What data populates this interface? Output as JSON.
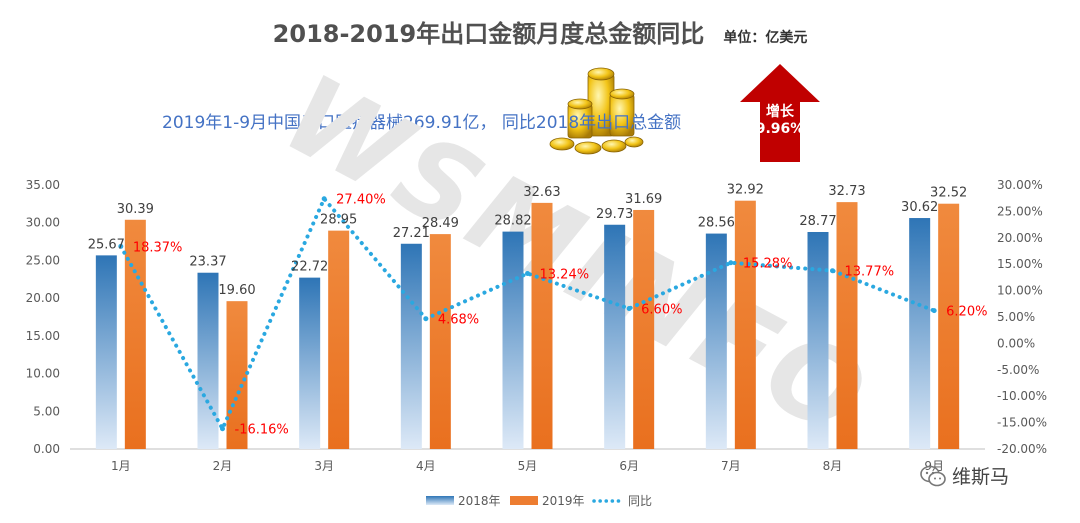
{
  "header": {
    "title": "2018-2019年出口金额月度总金额同比",
    "unit": "单位：亿美元",
    "subtitle": "2019年1-9月中国出口医疗器械269.91亿， 同比2018年出口总金额",
    "growth_label": "增长",
    "growth_value": "9.96%"
  },
  "watermark": "WSMINFO",
  "logo": {
    "text": "维斯马",
    "icon": "wechat-icon"
  },
  "colors": {
    "series_2018": "#2e75b6",
    "series_2019": "#ed7d31",
    "yoy_line": "#2aa8e0",
    "yoy_label": "#ff0000",
    "arrow": "#c00000"
  },
  "chart_data": {
    "type": "bar",
    "categories": [
      "1月",
      "2月",
      "3月",
      "4月",
      "5月",
      "6月",
      "7月",
      "8月",
      "9月"
    ],
    "series": [
      {
        "name": "2018年",
        "type": "bar",
        "axis": "left",
        "values": [
          25.67,
          23.37,
          22.72,
          27.21,
          28.82,
          29.73,
          28.56,
          28.77,
          30.62
        ],
        "labels": [
          "25.67",
          "23.37",
          "22.72",
          "27.21",
          "28.82",
          "29.73",
          "28.56",
          "28.77",
          "30.62"
        ]
      },
      {
        "name": "2019年",
        "type": "bar",
        "axis": "left",
        "values": [
          30.39,
          19.6,
          28.95,
          28.49,
          32.63,
          31.69,
          32.92,
          32.73,
          32.52
        ],
        "labels": [
          "30.39",
          "19.60",
          "28.95",
          "28.49",
          "32.63",
          "31.69",
          "32.92",
          "32.73",
          "32.52"
        ]
      },
      {
        "name": "同比",
        "type": "line",
        "axis": "right",
        "style": "dotted",
        "values": [
          18.37,
          -16.16,
          27.4,
          4.68,
          13.24,
          6.6,
          15.28,
          13.77,
          6.2
        ],
        "labels": [
          "18.37%",
          "-16.16%",
          "27.40%",
          "4.68%",
          "13.24%",
          "6.60%",
          "15.28%",
          "13.77%",
          "6.20%"
        ]
      }
    ],
    "y_left": {
      "min": 0,
      "max": 35,
      "step": 5,
      "tick_labels": [
        "0.00",
        "5.00",
        "10.00",
        "15.00",
        "20.00",
        "25.00",
        "30.00",
        "35.00"
      ]
    },
    "y_right": {
      "min": -20,
      "max": 30,
      "step": 5,
      "tick_labels": [
        "-20.00%",
        "-15.00%",
        "-10.00%",
        "-5.00%",
        "0.00%",
        "5.00%",
        "10.00%",
        "15.00%",
        "20.00%",
        "25.00%",
        "30.00%"
      ]
    },
    "legend": {
      "position": "bottom",
      "entries": [
        "2018年",
        "2019年",
        "同比"
      ]
    },
    "grid": false
  }
}
